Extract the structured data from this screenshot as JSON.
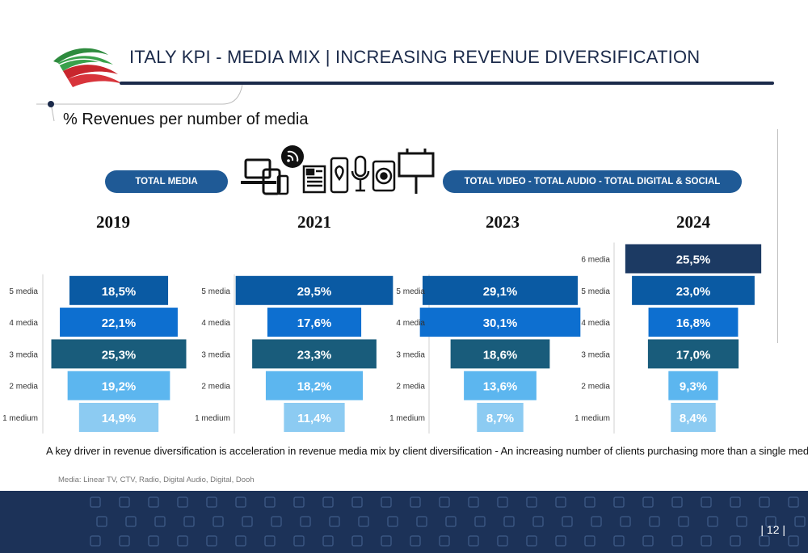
{
  "header": {
    "title": "ITALY KPI - MEDIA MIX | INCREASING REVENUE DIVERSIFICATION",
    "subtitle": "% Revenues per number of media"
  },
  "pills": {
    "left": "TOTAL MEDIA",
    "right": "TOTAL VIDEO  - TOTAL AUDIO - TOTAL DIGITAL & SOCIAL"
  },
  "icons": [
    "laptop-icon",
    "tablet-icon",
    "phone-icon",
    "wifi-bubble-icon",
    "newspaper-icon",
    "smartphone-location-icon",
    "microphone-icon",
    "speaker-icon",
    "billboard-icon"
  ],
  "chart_data": {
    "type": "bar",
    "title": "% Revenues per number of media",
    "panels": [
      {
        "year": "2019",
        "categories": [
          "5 media",
          "4 media",
          "3 media",
          "2 media",
          "1 medium"
        ],
        "values": [
          18.5,
          22.1,
          25.3,
          19.2,
          14.9
        ],
        "labels": [
          "18,5%",
          "22,1%",
          "25,3%",
          "19,2%",
          "14,9%"
        ]
      },
      {
        "year": "2021",
        "categories": [
          "5 media",
          "4 media",
          "3 media",
          "2 media",
          "1 medium"
        ],
        "values": [
          29.5,
          17.6,
          23.3,
          18.2,
          11.4
        ],
        "labels": [
          "29,5%",
          "17,6%",
          "23,3%",
          "18,2%",
          "11,4%"
        ]
      },
      {
        "year": "2023",
        "categories": [
          "5 media",
          "4 media",
          "3 media",
          "2 media",
          "1 medium"
        ],
        "values": [
          29.1,
          30.1,
          18.6,
          13.6,
          8.7
        ],
        "labels": [
          "29,1%",
          "30,1%",
          "18,6%",
          "13,6%",
          "8,7%"
        ]
      },
      {
        "year": "2024",
        "categories": [
          "6 media",
          "5 media",
          "4 media",
          "3 media",
          "2 media",
          "1 medium"
        ],
        "values": [
          25.5,
          23.0,
          16.8,
          17.0,
          9.3,
          8.4
        ],
        "labels": [
          "25,5%",
          "23,0%",
          "16,8%",
          "17,0%",
          "9,3%",
          "8,4%"
        ]
      }
    ],
    "colors": {
      "6 media": "#1c3a63",
      "5 media": "#0a5aa3",
      "4 media": "#0d6fd0",
      "3 media": "#195c7b",
      "2 media": "#5cb6ef",
      "1 medium": "#8ccbf2"
    }
  },
  "footnote": "A key driver in revenue diversification is acceleration in revenue media mix by client diversification - An increasing number of clients purchasing more than a single medium",
  "media_note": "Media: Linear TV, CTV, Radio, Digital Audio, Digital, Dooh",
  "page_number": "| 12 |"
}
